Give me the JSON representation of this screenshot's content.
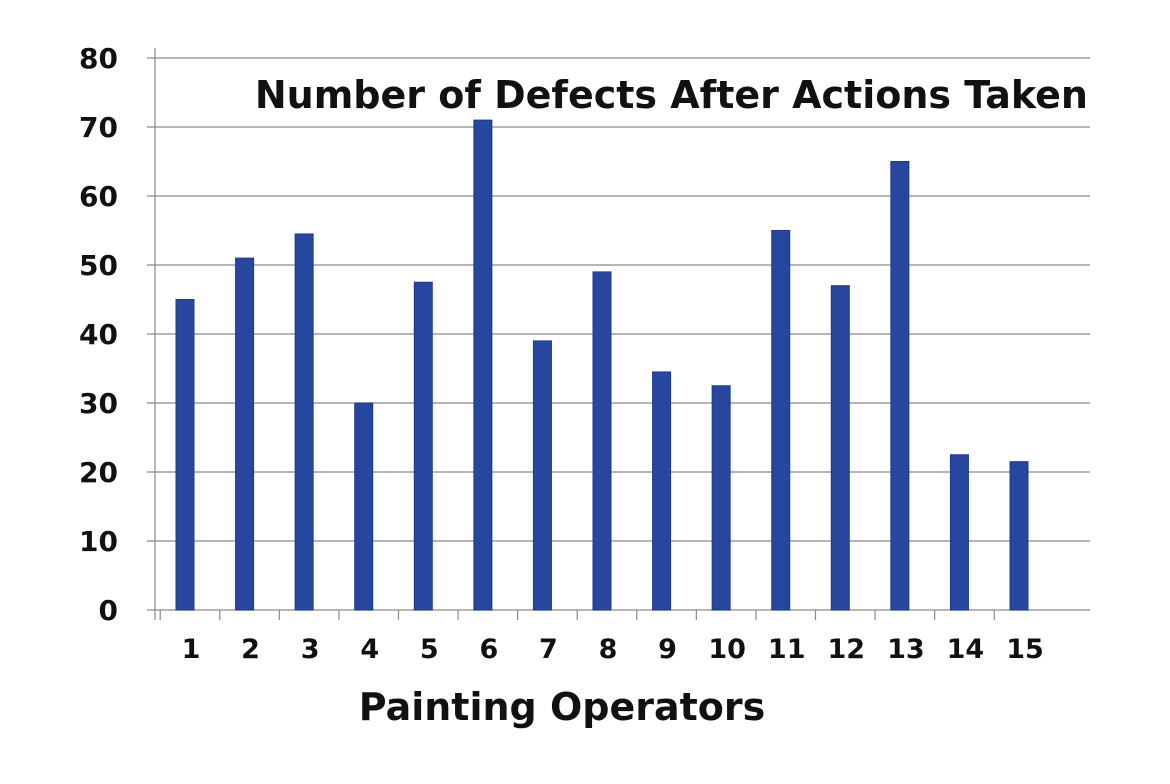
{
  "chart_data": {
    "type": "bar",
    "title": "Number of Defects After Actions Taken",
    "xlabel": "Painting Operators",
    "ylabel": "",
    "ylim": [
      0,
      80
    ],
    "yticks": [
      0,
      10,
      20,
      30,
      40,
      50,
      60,
      70,
      80
    ],
    "categories": [
      "1",
      "2",
      "3",
      "4",
      "5",
      "6",
      "7",
      "8",
      "9",
      "10",
      "11",
      "12",
      "13",
      "14",
      "15"
    ],
    "values": [
      45,
      51,
      54.5,
      30,
      47.5,
      71,
      39,
      49,
      34.5,
      32.5,
      55,
      47,
      65,
      22.5,
      21.5
    ],
    "grid": true,
    "colors": {
      "bar": "#27479f",
      "bar_edge": "#1d3a8f",
      "grid": "#8a8a8a",
      "axis": "#8a8a8a",
      "text": "#111111"
    }
  }
}
